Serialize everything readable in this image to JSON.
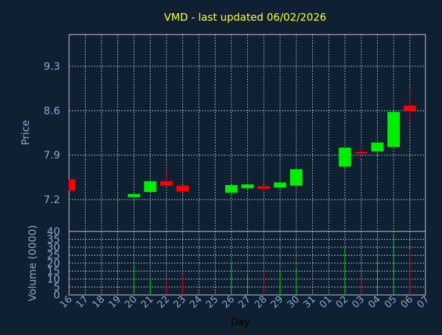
{
  "chart_data": {
    "type": "candlestick",
    "title": "VMD - last updated 06/02/2026",
    "price_panel": {
      "ylabel": "Price",
      "ylim": [
        6.7,
        9.8
      ],
      "yticks": [
        "7.2",
        "7.9",
        "8.6",
        "9.3"
      ],
      "ytick_values": [
        7.2,
        7.9,
        8.6,
        9.3
      ]
    },
    "volume_panel": {
      "ylabel": "Volume (0000)",
      "ylim": [
        0,
        40
      ],
      "yticks": [
        "0",
        "5",
        "10",
        "15",
        "20",
        "25",
        "30",
        "35",
        "40"
      ],
      "ytick_values": [
        0,
        5,
        10,
        15,
        20,
        25,
        30,
        35,
        40
      ]
    },
    "xlabel": "Day",
    "x_ticks": [
      "16",
      "17",
      "18",
      "19",
      "20",
      "21",
      "22",
      "23",
      "24",
      "25",
      "26",
      "27",
      "28",
      "29",
      "30",
      "31",
      "01",
      "02",
      "03",
      "04",
      "05",
      "06",
      "07"
    ],
    "up_color": "#00ee00",
    "down_color": "#ff0000",
    "doji_color": "#ff0000",
    "candles": [
      {
        "day": "16",
        "open": 7.52,
        "close": 7.34,
        "high": 7.52,
        "low": 7.34,
        "volume": null
      },
      {
        "day": "20",
        "open": 7.24,
        "close": 7.29,
        "high": 7.31,
        "low": 7.2,
        "volume": 19
      },
      {
        "day": "21",
        "open": 7.32,
        "close": 7.49,
        "high": 7.49,
        "low": 7.32,
        "volume": 10
      },
      {
        "day": "22",
        "open": 7.49,
        "close": 7.42,
        "high": 7.64,
        "low": 7.42,
        "volume": 9
      },
      {
        "day": "23",
        "open": 7.42,
        "close": 7.33,
        "high": 7.42,
        "low": 7.33,
        "volume": 12
      },
      {
        "day": "26",
        "open": 7.31,
        "close": 7.43,
        "high": 7.43,
        "low": 7.25,
        "volume": 21
      },
      {
        "day": "27",
        "open": 7.38,
        "close": 7.44,
        "high": 7.45,
        "low": 7.36,
        "volume": 14
      },
      {
        "day": "28",
        "open": 7.41,
        "close": 7.37,
        "high": 7.41,
        "low": 7.33,
        "volume": 14
      },
      {
        "day": "29",
        "open": 7.39,
        "close": 7.47,
        "high": 7.49,
        "low": 7.37,
        "volume": 15
      },
      {
        "day": "30",
        "open": 7.42,
        "close": 7.68,
        "high": 7.69,
        "low": 7.42,
        "volume": 17
      },
      {
        "day": "02",
        "open": 7.72,
        "close": 8.02,
        "high": 8.02,
        "low": 7.68,
        "volume": 30
      },
      {
        "day": "03",
        "open": 7.94,
        "close": 7.94,
        "high": 8.05,
        "low": 7.86,
        "volume": 11
      },
      {
        "day": "04",
        "open": 7.96,
        "close": 8.1,
        "high": 8.1,
        "low": 7.87,
        "volume": 23
      },
      {
        "day": "05",
        "open": 8.03,
        "close": 8.58,
        "high": 8.62,
        "low": 8.03,
        "volume": 38
      },
      {
        "day": "06",
        "open": 8.68,
        "close": 8.6,
        "high": 8.92,
        "low": 8.4,
        "volume": 28
      }
    ]
  }
}
